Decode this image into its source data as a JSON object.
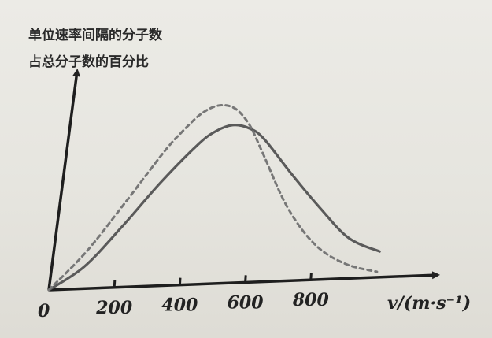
{
  "chart_data": {
    "type": "line",
    "title": "",
    "ylabel_lines": [
      "单位速率间隔的分子数",
      "占总分子数的百分比"
    ],
    "xlabel": "v/(m·s⁻¹)",
    "origin_label": "0",
    "x_ticks": [
      200,
      400,
      600,
      800
    ],
    "x_tick_labels": [
      "200",
      "400",
      "600",
      "800"
    ],
    "xlim": [
      0,
      1000
    ],
    "ylim": [
      0,
      1
    ],
    "grid": false,
    "legend": "none",
    "series": [
      {
        "style": "solid",
        "color": "#5a5a5a",
        "x": [
          0,
          100,
          200,
          300,
          400,
          450,
          500,
          550,
          600,
          700,
          800,
          900,
          1000
        ],
        "y": [
          0,
          0.12,
          0.33,
          0.56,
          0.76,
          0.83,
          0.86,
          0.84,
          0.78,
          0.58,
          0.39,
          0.22,
          0.14
        ]
      },
      {
        "style": "dashed",
        "color": "#777777",
        "x": [
          0,
          100,
          200,
          300,
          350,
          400,
          450,
          500,
          550,
          600,
          700,
          800,
          900,
          1000
        ],
        "y": [
          0,
          0.2,
          0.46,
          0.73,
          0.84,
          0.93,
          0.97,
          0.95,
          0.86,
          0.71,
          0.4,
          0.19,
          0.08,
          0.03
        ]
      }
    ]
  }
}
